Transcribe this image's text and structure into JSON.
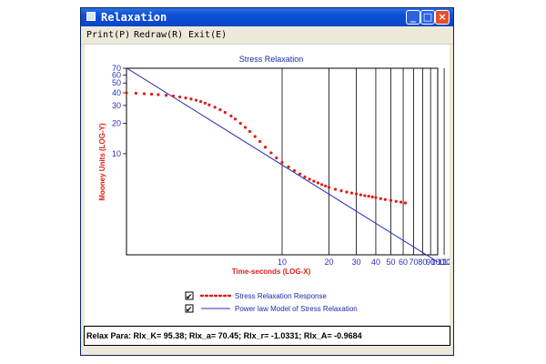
{
  "window": {
    "title": "Relaxation",
    "buttons": {
      "minimize": "_",
      "maximize": "□",
      "close": "×"
    }
  },
  "menu": {
    "items": [
      "Print(P)",
      "Redraw(R)",
      "Exit(E)"
    ]
  },
  "chart_data": {
    "type": "line",
    "title": "Stress Relaxation",
    "xlabel": "Time-seconds (LOG-X)",
    "ylabel": "Mooney Units (LOG-Y)",
    "xscale": "log",
    "yscale": "log",
    "xlim": [
      1,
      100
    ],
    "ylim": [
      1,
      70
    ],
    "x_tick_labels": [
      "10",
      "20",
      "30",
      "40",
      "50",
      "60",
      "70",
      "80",
      "90",
      "100",
      "110",
      "120",
      "130",
      "140",
      "150",
      "160",
      "170",
      "180"
    ],
    "y_tick_labels": [
      "70",
      "60",
      "50",
      "40",
      "30",
      "20",
      "10"
    ],
    "series": [
      {
        "name": "Stress Relaxation Response",
        "style": "dotted",
        "color": "#e21b14",
        "x": [
          1.0,
          1.15,
          1.3,
          1.45,
          1.6,
          1.8,
          2.0,
          2.2,
          2.4,
          2.6,
          2.8,
          3.0,
          3.2,
          3.4,
          3.7,
          4.0,
          4.3,
          4.7,
          5.0,
          5.4,
          5.8,
          6.2,
          6.7,
          7.2,
          7.8,
          8.5,
          9.2,
          10,
          11,
          12,
          13,
          14,
          15,
          16,
          17,
          18,
          19,
          20,
          22,
          24,
          26,
          28,
          30,
          32,
          34,
          36,
          38,
          40,
          43,
          46,
          50,
          54,
          58,
          62
        ],
        "y": [
          40,
          39.6,
          39.2,
          38.8,
          38.4,
          37.8,
          37.2,
          36.4,
          35.6,
          34.8,
          33.8,
          32.8,
          31.6,
          30.4,
          28.8,
          27.2,
          25.6,
          23.6,
          22,
          20,
          18.2,
          16.6,
          14.8,
          13.2,
          11.6,
          10.2,
          9.1,
          8.2,
          7.4,
          6.8,
          6.3,
          5.9,
          5.6,
          5.35,
          5.15,
          4.95,
          4.8,
          4.65,
          4.45,
          4.3,
          4.18,
          4.08,
          4.0,
          3.92,
          3.85,
          3.8,
          3.74,
          3.68,
          3.6,
          3.52,
          3.45,
          3.38,
          3.32,
          3.26
        ]
      },
      {
        "name": "Power law Model of Stress Relaxation",
        "style": "solid",
        "color": "#2b2fb8",
        "x": [
          1.0,
          100.0
        ],
        "y": [
          70.45,
          0.85
        ]
      }
    ],
    "legend": {
      "position": "bottom"
    },
    "grid": {
      "x": true,
      "y": false
    }
  },
  "status": {
    "text": "Relax Para: Rlx_K= 95.38; Rlx_a= 70.45; Rlx_r= -1.0331; Rlx_A= -0.9684"
  },
  "legend_checks": [
    "✔",
    "✔"
  ]
}
